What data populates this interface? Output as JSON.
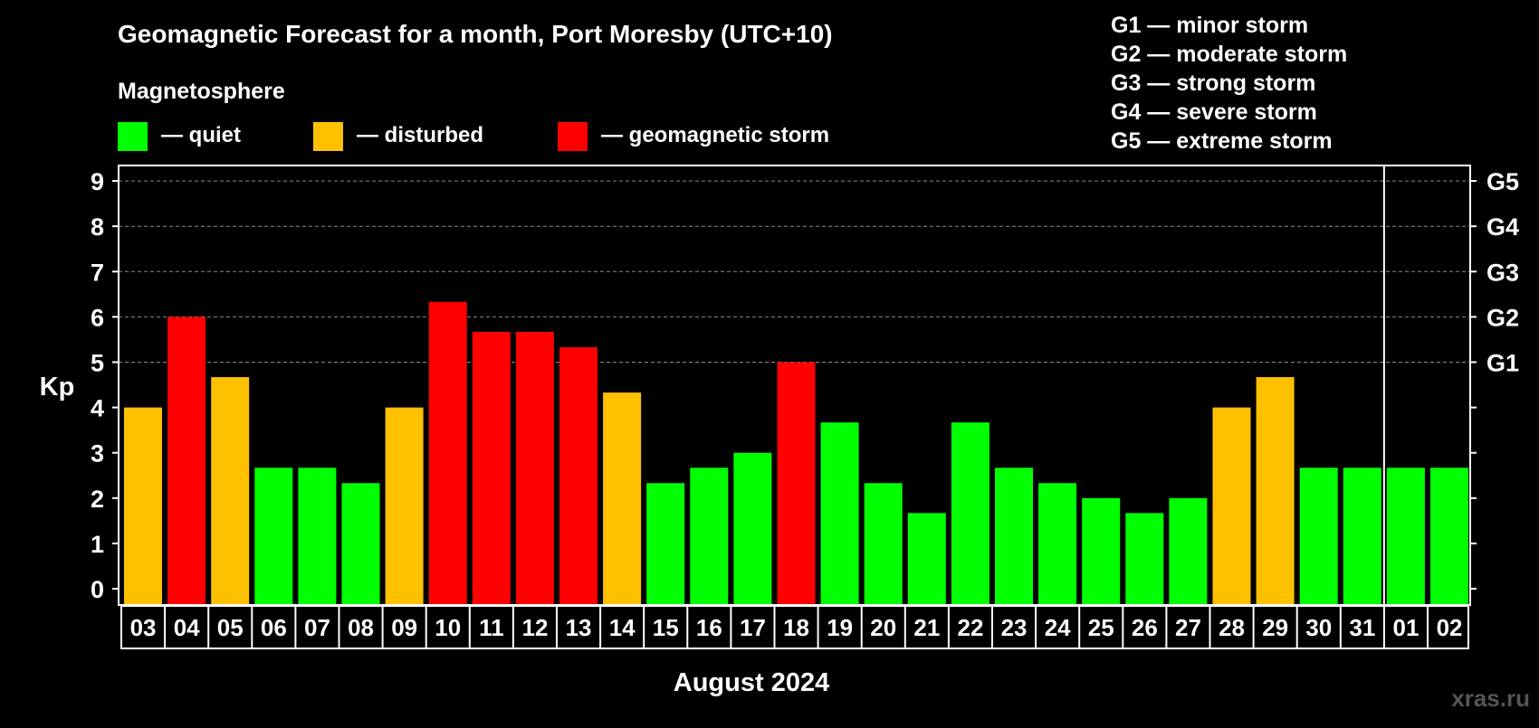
{
  "chart_data": {
    "type": "bar",
    "title": "Geomagnetic Forecast for a month, Port Moresby (UTC+10)",
    "legend_title": "Magnetosphere",
    "legend": [
      {
        "label": "— quiet",
        "color": "#00ff00"
      },
      {
        "label": "— disturbed",
        "color": "#ffc000"
      },
      {
        "label": "— geomagnetic storm",
        "color": "#ff0000"
      }
    ],
    "storm_scale": [
      "G1 — minor storm",
      "G2 — moderate storm",
      "G3 — strong storm",
      "G4 — severe storm",
      "G5 — extreme storm"
    ],
    "ylabel": "Kp",
    "xlabel": "August 2024",
    "ylim": [
      0,
      9
    ],
    "yticks": [
      "0",
      "1",
      "2",
      "3",
      "4",
      "5",
      "6",
      "7",
      "8",
      "9"
    ],
    "right_ticks": [
      {
        "kp": 5,
        "label": "G1"
      },
      {
        "kp": 6,
        "label": "G2"
      },
      {
        "kp": 7,
        "label": "G3"
      },
      {
        "kp": 8,
        "label": "G4"
      },
      {
        "kp": 9,
        "label": "G5"
      }
    ],
    "grid": "dashed at 5, 6, 7, 8, 9",
    "month_divider_after": "31",
    "categories": [
      "03",
      "04",
      "05",
      "06",
      "07",
      "08",
      "09",
      "10",
      "11",
      "12",
      "13",
      "14",
      "15",
      "16",
      "17",
      "18",
      "19",
      "20",
      "21",
      "22",
      "23",
      "24",
      "25",
      "26",
      "27",
      "28",
      "29",
      "30",
      "31",
      "01",
      "02"
    ],
    "values": [
      4.0,
      6.0,
      4.67,
      2.67,
      2.67,
      2.33,
      4.0,
      6.33,
      5.67,
      5.67,
      5.33,
      4.33,
      2.33,
      2.67,
      3.0,
      5.0,
      3.67,
      2.33,
      1.67,
      3.67,
      2.67,
      2.33,
      2.0,
      1.67,
      2.0,
      4.0,
      4.67,
      2.67,
      2.67,
      2.67,
      2.67
    ],
    "status": [
      "disturbed",
      "storm",
      "disturbed",
      "quiet",
      "quiet",
      "quiet",
      "disturbed",
      "storm",
      "storm",
      "storm",
      "storm",
      "disturbed",
      "quiet",
      "quiet",
      "quiet",
      "storm",
      "quiet",
      "quiet",
      "quiet",
      "quiet",
      "quiet",
      "quiet",
      "quiet",
      "quiet",
      "quiet",
      "disturbed",
      "disturbed",
      "quiet",
      "quiet",
      "quiet",
      "quiet"
    ],
    "colors": {
      "quiet": "#00ff00",
      "disturbed": "#ffc000",
      "storm": "#ff0000"
    }
  },
  "watermark": "xras.ru"
}
